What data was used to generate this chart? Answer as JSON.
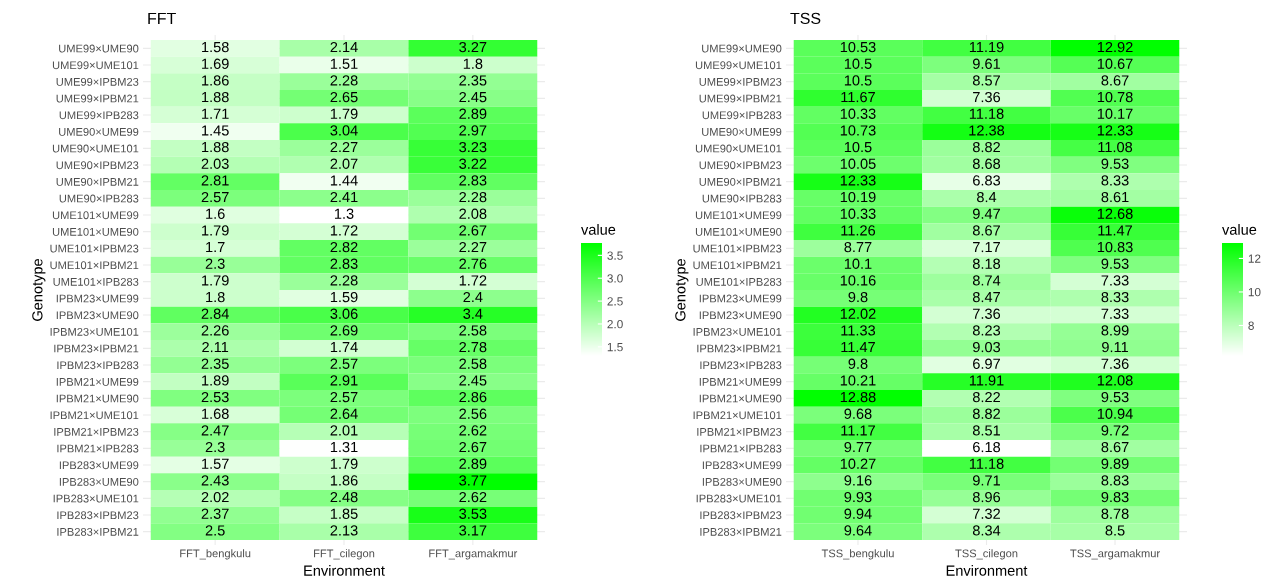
{
  "chart_data": [
    {
      "type": "heatmap",
      "title": "FFT",
      "xlabel": "Environment",
      "ylabel": "Genotype",
      "clabel": "value",
      "categories": [
        "FFT_bengkulu",
        "FFT_cilegon",
        "FFT_argamakmur"
      ],
      "y_categories": [
        "UME99×UME90",
        "UME99×UME101",
        "UME99×IPBM23",
        "UME99×IPBM21",
        "UME99×IPB283",
        "UME90×UME99",
        "UME90×UME101",
        "UME90×IPBM23",
        "UME90×IPBM21",
        "UME90×IPB283",
        "UME101×UME99",
        "UME101×UME90",
        "UME101×IPBM23",
        "UME101×IPBM21",
        "UME101×IPB283",
        "IPBM23×UME99",
        "IPBM23×UME90",
        "IPBM23×UME101",
        "IPBM23×IPBM21",
        "IPBM23×IPB283",
        "IPBM21×UME99",
        "IPBM21×UME90",
        "IPBM21×UME101",
        "IPBM21×IPBM23",
        "IPBM21×IPB283",
        "IPB283×UME99",
        "IPB283×UME90",
        "IPB283×UME101",
        "IPB283×IPBM23",
        "IPB283×IPBM21"
      ],
      "cells": [
        [
          1.58,
          2.14,
          3.27
        ],
        [
          1.69,
          1.51,
          1.8
        ],
        [
          1.86,
          2.28,
          2.35
        ],
        [
          1.88,
          2.65,
          2.45
        ],
        [
          1.71,
          1.79,
          2.89
        ],
        [
          1.45,
          3.04,
          2.97
        ],
        [
          1.88,
          2.27,
          3.23
        ],
        [
          2.03,
          2.07,
          3.22
        ],
        [
          2.81,
          1.44,
          2.83
        ],
        [
          2.57,
          2.41,
          2.28
        ],
        [
          1.6,
          1.3,
          2.08
        ],
        [
          1.79,
          1.72,
          2.67
        ],
        [
          1.7,
          2.82,
          2.27
        ],
        [
          2.3,
          2.83,
          2.76
        ],
        [
          1.79,
          2.28,
          1.72
        ],
        [
          1.8,
          1.59,
          2.4
        ],
        [
          2.84,
          3.06,
          3.4
        ],
        [
          2.26,
          2.69,
          2.58
        ],
        [
          2.11,
          1.74,
          2.78
        ],
        [
          2.35,
          2.57,
          2.58
        ],
        [
          1.89,
          2.91,
          2.45
        ],
        [
          2.53,
          2.57,
          2.86
        ],
        [
          1.68,
          2.64,
          2.56
        ],
        [
          2.47,
          2.01,
          2.62
        ],
        [
          2.3,
          1.31,
          2.67
        ],
        [
          1.57,
          1.79,
          2.89
        ],
        [
          2.43,
          1.86,
          3.77
        ],
        [
          2.02,
          2.48,
          2.62
        ],
        [
          2.37,
          1.85,
          3.53
        ],
        [
          2.5,
          2.13,
          3.17
        ]
      ],
      "colors": [
        "#ffffff",
        "#00ff00"
      ],
      "clim": [
        1.3,
        3.77
      ],
      "cticks": [
        {
          "value": 1.5,
          "label": "1.5"
        },
        {
          "value": 2.0,
          "label": "2.0"
        },
        {
          "value": 2.5,
          "label": "2.5"
        },
        {
          "value": 3.0,
          "label": "3.0"
        },
        {
          "value": 3.5,
          "label": "3.5"
        }
      ],
      "data_labels": true,
      "grid": true
    },
    {
      "type": "heatmap",
      "title": "TSS",
      "xlabel": "Environment",
      "ylabel": "Genotype",
      "clabel": "value",
      "categories": [
        "TSS_bengkulu",
        "TSS_cilegon",
        "TSS_argamakmur"
      ],
      "y_categories": [
        "UME99×UME90",
        "UME99×UME101",
        "UME99×IPBM23",
        "UME99×IPBM21",
        "UME99×IPB283",
        "UME90×UME99",
        "UME90×UME101",
        "UME90×IPBM23",
        "UME90×IPBM21",
        "UME90×IPB283",
        "UME101×UME99",
        "UME101×UME90",
        "UME101×IPBM23",
        "UME101×IPBM21",
        "UME101×IPB283",
        "IPBM23×UME99",
        "IPBM23×UME90",
        "IPBM23×UME101",
        "IPBM23×IPBM21",
        "IPBM23×IPB283",
        "IPBM21×UME99",
        "IPBM21×UME90",
        "IPBM21×UME101",
        "IPBM21×IPBM23",
        "IPBM21×IPB283",
        "IPB283×UME99",
        "IPB283×UME90",
        "IPB283×UME101",
        "IPB283×IPBM23",
        "IPB283×IPBM21"
      ],
      "cells": [
        [
          10.53,
          11.19,
          12.92
        ],
        [
          10.5,
          9.61,
          10.67
        ],
        [
          10.5,
          8.57,
          8.67
        ],
        [
          11.67,
          7.36,
          10.78
        ],
        [
          10.33,
          11.18,
          10.17
        ],
        [
          10.73,
          12.38,
          12.33
        ],
        [
          10.5,
          8.82,
          11.08
        ],
        [
          10.05,
          8.68,
          9.53
        ],
        [
          12.33,
          6.83,
          8.33
        ],
        [
          10.19,
          8.4,
          8.61
        ],
        [
          10.33,
          9.47,
          12.68
        ],
        [
          11.26,
          8.67,
          11.47
        ],
        [
          8.77,
          7.17,
          10.83
        ],
        [
          10.1,
          8.18,
          9.53
        ],
        [
          10.16,
          8.74,
          7.33
        ],
        [
          9.8,
          8.47,
          8.33
        ],
        [
          12.02,
          7.36,
          7.33
        ],
        [
          11.33,
          8.23,
          8.99
        ],
        [
          11.47,
          9.03,
          9.11
        ],
        [
          9.8,
          6.97,
          7.36
        ],
        [
          10.21,
          11.91,
          12.08
        ],
        [
          12.88,
          8.22,
          9.53
        ],
        [
          9.68,
          8.82,
          10.94
        ],
        [
          11.17,
          8.51,
          9.72
        ],
        [
          9.77,
          6.18,
          8.67
        ],
        [
          10.27,
          11.18,
          9.89
        ],
        [
          9.16,
          9.71,
          8.83
        ],
        [
          9.93,
          8.96,
          9.83
        ],
        [
          9.94,
          7.32,
          8.78
        ],
        [
          9.64,
          8.34,
          8.5
        ]
      ],
      "colors": [
        "#ffffff",
        "#00ff00"
      ],
      "clim": [
        6.18,
        12.92
      ],
      "cticks": [
        8,
        10,
        12
      ],
      "data_labels": true,
      "grid": true
    }
  ]
}
